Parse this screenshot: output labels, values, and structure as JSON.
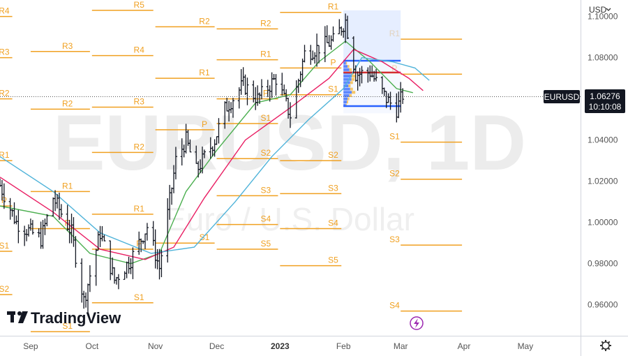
{
  "currency_menu": {
    "label": "USD"
  },
  "symbol_tag": {
    "label": "EURUSD"
  },
  "price_tag": {
    "price": "1.06276",
    "countdown": "10:10:08"
  },
  "watermark": {
    "symbol": "EURUSD, 1D",
    "description": "Euro / U.S. Dollar"
  },
  "logo": {
    "text": "TradingView"
  },
  "colors": {
    "pivot": "#f0a020",
    "ma_fast": "#4caf50",
    "ma_mid": "#e91e63",
    "ma_slow": "#4fb3d9",
    "profile": "#2962ff",
    "tag_bg": "#131722",
    "lightning": "#9c27b0"
  },
  "icons": {
    "lightning": "lightning-icon",
    "settings": "gear-icon",
    "menu": "chevron-down-icon"
  },
  "chart_data": {
    "type": "ohlc",
    "timeframe": "1D",
    "last_price": 1.06276,
    "y_range": [
      0.945,
      1.108
    ],
    "y_ticks": [
      "1.10000",
      "1.08000",
      "1.06000",
      "1.04000",
      "1.02000",
      "1.00000",
      "0.98000",
      "0.96000"
    ],
    "y_tick_values": [
      1.1,
      1.08,
      1.06,
      1.04,
      1.02,
      1.0,
      0.98,
      0.96
    ],
    "x_ticks": [
      {
        "label": "Sep",
        "date": "2022-09-01"
      },
      {
        "label": "Oct",
        "date": "2022-10-01"
      },
      {
        "label": "Nov",
        "date": "2022-11-01"
      },
      {
        "label": "Dec",
        "date": "2022-12-01"
      },
      {
        "label": "2023",
        "date": "2023-01-01",
        "bold": true
      },
      {
        "label": "Feb",
        "date": "2023-02-01"
      },
      {
        "label": "Mar",
        "date": "2023-03-01"
      },
      {
        "label": "Apr",
        "date": "2023-04-01"
      },
      {
        "label": "May",
        "date": "2023-05-01"
      }
    ],
    "x_range": [
      "2022-08-17",
      "2023-05-28"
    ],
    "price_path": [
      [
        "2022-08-17",
        1.018
      ],
      [
        "2022-08-25",
        1.0
      ],
      [
        "2022-09-06",
        0.992
      ],
      [
        "2022-09-12",
        1.012
      ],
      [
        "2022-09-21",
        0.995
      ],
      [
        "2022-09-27",
        0.962
      ],
      [
        "2022-10-05",
        0.995
      ],
      [
        "2022-10-12",
        0.972
      ],
      [
        "2022-10-20",
        0.982
      ],
      [
        "2022-10-28",
        0.998
      ],
      [
        "2022-11-03",
        0.978
      ],
      [
        "2022-11-11",
        1.03
      ],
      [
        "2022-11-16",
        1.04
      ],
      [
        "2022-11-21",
        1.025
      ],
      [
        "2022-11-30",
        1.04
      ],
      [
        "2022-12-05",
        1.055
      ],
      [
        "2022-12-14",
        1.067
      ],
      [
        "2022-12-21",
        1.06
      ],
      [
        "2022-12-30",
        1.07
      ],
      [
        "2023-01-06",
        1.052
      ],
      [
        "2023-01-13",
        1.082
      ],
      [
        "2023-01-20",
        1.085
      ],
      [
        "2023-01-27",
        1.088
      ],
      [
        "2023-02-02",
        1.098
      ],
      [
        "2023-02-07",
        1.072
      ],
      [
        "2023-02-14",
        1.073
      ],
      [
        "2023-02-22",
        1.06
      ],
      [
        "2023-02-27",
        1.055
      ],
      [
        "2023-03-02",
        1.062
      ]
    ],
    "moving_averages": [
      {
        "color_key": "ma_fast",
        "points": [
          [
            "2022-08-17",
            1.008
          ],
          [
            "2022-09-12",
            1.003
          ],
          [
            "2022-09-30",
            0.985
          ],
          [
            "2022-10-20",
            0.98
          ],
          [
            "2022-11-03",
            0.985
          ],
          [
            "2022-11-16",
            1.015
          ],
          [
            "2022-12-01",
            1.035
          ],
          [
            "2022-12-20",
            1.058
          ],
          [
            "2023-01-06",
            1.062
          ],
          [
            "2023-01-20",
            1.078
          ],
          [
            "2023-02-02",
            1.088
          ],
          [
            "2023-02-14",
            1.078
          ],
          [
            "2023-02-27",
            1.065
          ],
          [
            "2023-03-07",
            1.063
          ]
        ]
      },
      {
        "color_key": "ma_mid",
        "points": [
          [
            "2022-08-17",
            1.022
          ],
          [
            "2022-09-12",
            1.005
          ],
          [
            "2022-10-05",
            0.987
          ],
          [
            "2022-10-27",
            0.982
          ],
          [
            "2022-11-10",
            0.988
          ],
          [
            "2022-11-25",
            1.012
          ],
          [
            "2022-12-15",
            1.04
          ],
          [
            "2023-01-05",
            1.055
          ],
          [
            "2023-01-25",
            1.07
          ],
          [
            "2023-02-06",
            1.084
          ],
          [
            "2023-02-20",
            1.078
          ],
          [
            "2023-03-05",
            1.07
          ],
          [
            "2023-03-12",
            1.064
          ]
        ]
      },
      {
        "color_key": "ma_slow",
        "points": [
          [
            "2022-08-17",
            1.032
          ],
          [
            "2022-09-12",
            1.015
          ],
          [
            "2022-10-05",
            0.995
          ],
          [
            "2022-10-30",
            0.985
          ],
          [
            "2022-11-20",
            0.988
          ],
          [
            "2022-12-10",
            1.01
          ],
          [
            "2022-12-28",
            1.032
          ],
          [
            "2023-01-15",
            1.05
          ],
          [
            "2023-02-01",
            1.065
          ],
          [
            "2023-02-10",
            1.08
          ],
          [
            "2023-02-25",
            1.078
          ],
          [
            "2023-03-08",
            1.075
          ],
          [
            "2023-03-15",
            1.069
          ]
        ]
      }
    ],
    "pivot_periods": [
      {
        "from": "2022-08-17",
        "to": "2022-08-23",
        "label_date": "2022-08-19",
        "levels": [
          {
            "label": "R4",
            "value": 1.1
          },
          {
            "label": "R3",
            "value": 1.08
          },
          {
            "label": "R2",
            "value": 1.06
          },
          {
            "label": "R1",
            "value": 1.03
          },
          {
            "label": "P",
            "value": 1.008
          },
          {
            "label": "S1",
            "value": 0.986
          },
          {
            "label": "S2",
            "value": 0.965
          }
        ]
      },
      {
        "from": "2022-09-01",
        "to": "2022-09-30",
        "label_date": "2022-09-19",
        "levels": [
          {
            "label": "R4",
            "value": 1.122
          },
          {
            "label": "R3",
            "value": 1.083
          },
          {
            "label": "R2",
            "value": 1.055
          },
          {
            "label": "R1",
            "value": 1.015
          },
          {
            "label": "P",
            "value": 0.997
          },
          {
            "label": "S1",
            "value": 0.947
          }
        ]
      },
      {
        "from": "2022-10-01",
        "to": "2022-10-31",
        "label_date": "2022-10-24",
        "levels": [
          {
            "label": "R5",
            "value": 1.103
          },
          {
            "label": "R4",
            "value": 1.081
          },
          {
            "label": "R3",
            "value": 1.056
          },
          {
            "label": "R2",
            "value": 1.034
          },
          {
            "label": "R1",
            "value": 1.004
          },
          {
            "label": "P",
            "value": 0.987
          },
          {
            "label": "S1",
            "value": 0.961
          }
        ]
      },
      {
        "from": "2022-11-01",
        "to": "2022-11-30",
        "label_date": "2022-11-25",
        "levels": [
          {
            "label": "R2",
            "value": 1.095
          },
          {
            "label": "R1",
            "value": 1.07
          },
          {
            "label": "P",
            "value": 1.045
          },
          {
            "label": "S1",
            "value": 0.99
          }
        ]
      },
      {
        "from": "2022-12-01",
        "to": "2022-12-31",
        "label_date": "2022-12-25",
        "levels": [
          {
            "label": "R2",
            "value": 1.094
          },
          {
            "label": "R1",
            "value": 1.079
          },
          {
            "label": "P",
            "value": 1.06
          },
          {
            "label": "S1",
            "value": 1.048
          },
          {
            "label": "S2",
            "value": 1.031
          },
          {
            "label": "S3",
            "value": 1.013
          },
          {
            "label": "S4",
            "value": 0.999
          },
          {
            "label": "S5",
            "value": 0.987
          }
        ]
      },
      {
        "from": "2023-01-01",
        "to": "2023-01-31",
        "label_date": "2023-01-27",
        "levels": [
          {
            "label": "R1",
            "value": 1.102
          },
          {
            "label": "P",
            "value": 1.075
          },
          {
            "label": "S1",
            "value": 1.062
          },
          {
            "label": "S2",
            "value": 1.03
          },
          {
            "label": "S3",
            "value": 1.014
          },
          {
            "label": "S4",
            "value": 0.997
          },
          {
            "label": "S5",
            "value": 0.979
          }
        ]
      },
      {
        "from": "2023-03-01",
        "to": "2023-03-31",
        "label_date": "2023-02-26",
        "levels": [
          {
            "label": "R1",
            "value": 1.089
          },
          {
            "label": "P",
            "value": 1.072
          },
          {
            "label": "S1",
            "value": 1.039
          },
          {
            "label": "S2",
            "value": 1.021
          },
          {
            "label": "S3",
            "value": 0.989
          },
          {
            "label": "S4",
            "value": 0.957
          }
        ]
      }
    ],
    "profile_levels": [
      1.0785,
      1.0728,
      1.0565
    ],
    "profile_range": {
      "from": "2023-02-01",
      "to": "2023-03-01",
      "high": 1.103,
      "low": 1.053
    }
  }
}
